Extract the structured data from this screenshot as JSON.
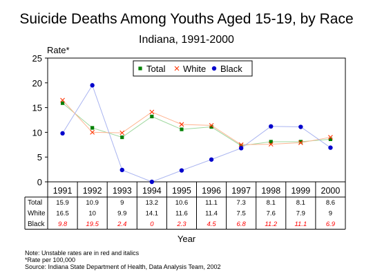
{
  "chart_data": {
    "type": "line",
    "title": "Suicide Deaths Among Youths Aged 15-19, by Race",
    "subtitle": "Indiana, 1991-2000",
    "ylabel": "Rate*",
    "xlabel": "Year",
    "ylim": [
      0,
      25
    ],
    "yticks": [
      "0",
      "5",
      "10",
      "15",
      "20",
      "25"
    ],
    "categories": [
      "1991",
      "1992",
      "1993",
      "1994",
      "1995",
      "1996",
      "1997",
      "1998",
      "1999",
      "2000"
    ],
    "series": [
      {
        "name": "Total",
        "values": [
          15.9,
          10.9,
          9,
          13.2,
          10.6,
          11.1,
          7.3,
          8.1,
          8.1,
          8.6
        ],
        "labels": [
          "15.9",
          "10.9",
          "9",
          "13.2",
          "10.6",
          "11.1",
          "7.3",
          "8.1",
          "8.1",
          "8.6"
        ],
        "color": "#008000",
        "line_color": "#9fd89f",
        "marker": "square"
      },
      {
        "name": "White",
        "values": [
          16.5,
          10,
          9.9,
          14.1,
          11.6,
          11.4,
          7.5,
          7.6,
          7.9,
          9
        ],
        "labels": [
          "16.5",
          "10",
          "9.9",
          "14.1",
          "11.6",
          "11.4",
          "7.5",
          "7.6",
          "7.9",
          "9"
        ],
        "color": "#ff3300",
        "line_color": "#ffb38f",
        "marker": "x"
      },
      {
        "name": "Black",
        "values": [
          9.8,
          19.5,
          2.4,
          0,
          2.3,
          4.5,
          6.8,
          11.2,
          11.1,
          6.9
        ],
        "labels": [
          "9.8",
          "19.5",
          "2.4",
          "0",
          "2.3",
          "4.5",
          "6.8",
          "11.2",
          "11.1",
          "6.9"
        ],
        "color": "#0000cc",
        "line_color": "#a9b4f0",
        "marker": "circle",
        "table_color": "#ff0000",
        "table_italic": true
      }
    ],
    "grid": false,
    "legend_position": "top-center",
    "notes": [
      "Note:  Unstable rates are in red and italics",
      "*Rate per 100,000",
      "Source:  Indiana State Department of Health, Data Analysis Team, 2002"
    ]
  }
}
